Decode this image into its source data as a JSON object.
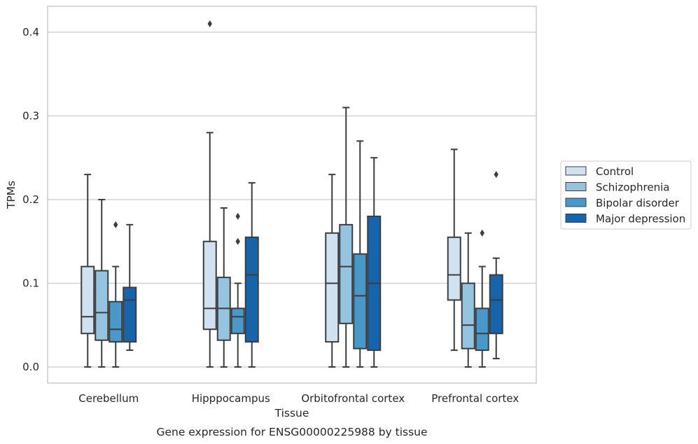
{
  "chart_data": {
    "type": "box",
    "title": "Gene expression for ENSG00000225988 by tissue",
    "xlabel": "Tissue",
    "ylabel": "TPMs",
    "ylim": [
      -0.02,
      0.43
    ],
    "yticks": [
      0.0,
      0.1,
      0.2,
      0.3,
      0.4
    ],
    "ytick_labels": [
      "0.0",
      "0.1",
      "0.2",
      "0.3",
      "0.4"
    ],
    "grid": "horizontal",
    "legend_position": "right",
    "categories": [
      "Cerebellum",
      "Hipppocampus",
      "Orbitofrontal cortex",
      "Prefrontal cortex"
    ],
    "series": [
      {
        "name": "Control",
        "color": "#d0e1f2",
        "boxes": [
          {
            "whislo": 0.0,
            "q1": 0.04,
            "med": 0.06,
            "q3": 0.12,
            "whishi": 0.23,
            "fliers": []
          },
          {
            "whislo": 0.0,
            "q1": 0.045,
            "med": 0.07,
            "q3": 0.15,
            "whishi": 0.28,
            "fliers": [
              0.41
            ]
          },
          {
            "whislo": 0.0,
            "q1": 0.03,
            "med": 0.1,
            "q3": 0.16,
            "whishi": 0.23,
            "fliers": []
          },
          {
            "whislo": 0.02,
            "q1": 0.08,
            "med": 0.11,
            "q3": 0.155,
            "whishi": 0.26,
            "fliers": []
          }
        ]
      },
      {
        "name": "Schizophrenia",
        "color": "#94c4df",
        "boxes": [
          {
            "whislo": 0.0,
            "q1": 0.032,
            "med": 0.065,
            "q3": 0.115,
            "whishi": 0.2,
            "fliers": []
          },
          {
            "whislo": 0.0,
            "q1": 0.032,
            "med": 0.07,
            "q3": 0.107,
            "whishi": 0.19,
            "fliers": []
          },
          {
            "whislo": 0.0,
            "q1": 0.052,
            "med": 0.12,
            "q3": 0.17,
            "whishi": 0.31,
            "fliers": []
          },
          {
            "whislo": 0.0,
            "q1": 0.022,
            "med": 0.05,
            "q3": 0.1,
            "whishi": 0.16,
            "fliers": []
          }
        ]
      },
      {
        "name": "Bipolar disorder",
        "color": "#4a98c9",
        "boxes": [
          {
            "whislo": 0.0,
            "q1": 0.03,
            "med": 0.045,
            "q3": 0.078,
            "whishi": 0.12,
            "fliers": [
              0.17
            ]
          },
          {
            "whislo": 0.0,
            "q1": 0.04,
            "med": 0.06,
            "q3": 0.07,
            "whishi": 0.1,
            "fliers": [
              0.15,
              0.18
            ]
          },
          {
            "whislo": 0.0,
            "q1": 0.022,
            "med": 0.085,
            "q3": 0.135,
            "whishi": 0.27,
            "fliers": []
          },
          {
            "whislo": 0.0,
            "q1": 0.02,
            "med": 0.04,
            "q3": 0.07,
            "whishi": 0.12,
            "fliers": [
              0.16
            ]
          }
        ]
      },
      {
        "name": "Major depression",
        "color": "#1764ab",
        "boxes": [
          {
            "whislo": 0.02,
            "q1": 0.03,
            "med": 0.08,
            "q3": 0.095,
            "whishi": 0.17,
            "fliers": []
          },
          {
            "whislo": 0.0,
            "q1": 0.03,
            "med": 0.11,
            "q3": 0.155,
            "whishi": 0.22,
            "fliers": []
          },
          {
            "whislo": 0.0,
            "q1": 0.02,
            "med": 0.1,
            "q3": 0.18,
            "whishi": 0.25,
            "fliers": []
          },
          {
            "whislo": 0.01,
            "q1": 0.04,
            "med": 0.08,
            "q3": 0.11,
            "whishi": 0.13,
            "fliers": [
              0.23
            ]
          }
        ]
      }
    ]
  }
}
